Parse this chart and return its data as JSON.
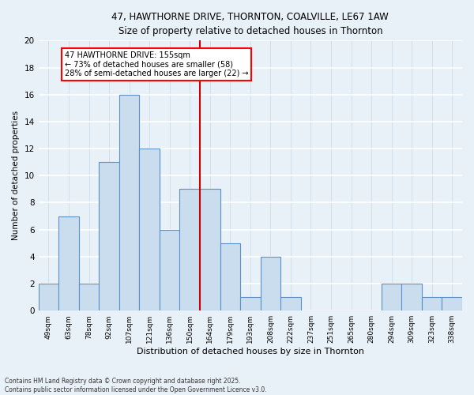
{
  "title1": "47, HAWTHORNE DRIVE, THORNTON, COALVILLE, LE67 1AW",
  "title2": "Size of property relative to detached houses in Thornton",
  "xlabel": "Distribution of detached houses by size in Thornton",
  "ylabel": "Number of detached properties",
  "footer1": "Contains HM Land Registry data © Crown copyright and database right 2025.",
  "footer2": "Contains public sector information licensed under the Open Government Licence v3.0.",
  "annotation_line1": "47 HAWTHORNE DRIVE: 155sqm",
  "annotation_line2": "← 73% of detached houses are smaller (58)",
  "annotation_line3": "28% of semi-detached houses are larger (22) →",
  "bin_labels": [
    "49sqm",
    "63sqm",
    "78sqm",
    "92sqm",
    "107sqm",
    "121sqm",
    "136sqm",
    "150sqm",
    "164sqm",
    "179sqm",
    "193sqm",
    "208sqm",
    "222sqm",
    "237sqm",
    "251sqm",
    "265sqm",
    "280sqm",
    "294sqm",
    "309sqm",
    "323sqm",
    "338sqm"
  ],
  "bar_heights": [
    2,
    7,
    2,
    11,
    16,
    12,
    6,
    9,
    9,
    5,
    1,
    4,
    1,
    0,
    0,
    0,
    0,
    2,
    2,
    1,
    1
  ],
  "bar_color": "#c9ddef",
  "bar_edge_color": "#5b8fc9",
  "background_color": "#e8f0f8",
  "grid_color": "#d0dce8",
  "red_line_x": 7.5,
  "ylim": [
    0,
    20
  ],
  "yticks": [
    0,
    2,
    4,
    6,
    8,
    10,
    12,
    14,
    16,
    18,
    20
  ]
}
